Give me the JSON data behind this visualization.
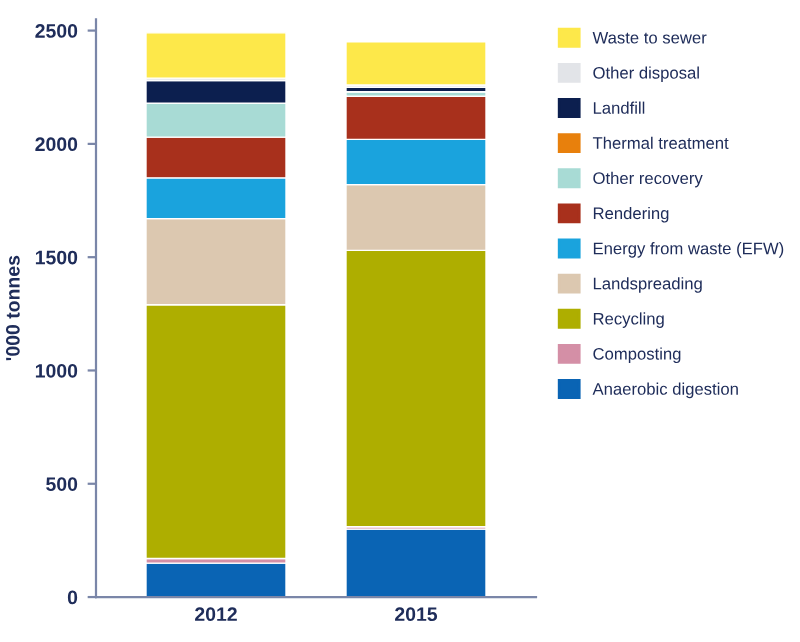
{
  "chart_data": {
    "type": "bar",
    "stacked": true,
    "categories": [
      "2012",
      "2015"
    ],
    "ylabel": "'000 tonnes",
    "ylim": [
      0,
      2550
    ],
    "yticks": [
      0,
      500,
      1000,
      1500,
      2000,
      2500
    ],
    "grid": false,
    "legend": "right",
    "series": [
      {
        "name": "Anaerobic digestion",
        "color": "#0a64b4",
        "values": [
          150,
          300
        ]
      },
      {
        "name": "Composting",
        "color": "#d48fa6",
        "values": [
          20,
          10
        ]
      },
      {
        "name": "Recycling",
        "color": "#aeae00",
        "values": [
          1120,
          1220
        ]
      },
      {
        "name": "Landspreading",
        "color": "#dcc8b0",
        "values": [
          380,
          290
        ]
      },
      {
        "name": "Energy from waste (EFW)",
        "color": "#1aa3dd",
        "values": [
          180,
          200
        ]
      },
      {
        "name": "Rendering",
        "color": "#a8301c",
        "values": [
          180,
          190
        ]
      },
      {
        "name": "Other recovery",
        "color": "#a8dbd5",
        "values": [
          150,
          20
        ]
      },
      {
        "name": "Thermal treatment",
        "color": "#e8800c",
        "values": [
          null,
          0
        ]
      },
      {
        "name": "Landfill",
        "color": "#0c1f4f",
        "values": [
          100,
          20
        ]
      },
      {
        "name": "Other disposal",
        "color": "#e2e4e8",
        "values": [
          10,
          10
        ]
      },
      {
        "name": "Waste to sewer",
        "color": "#fde84a",
        "values": [
          200,
          190
        ]
      }
    ]
  }
}
